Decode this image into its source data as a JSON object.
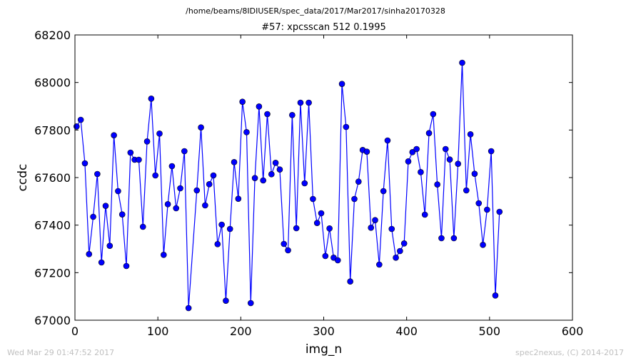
{
  "chart_data": {
    "type": "line",
    "suptitle": "/home/beams/8IDIUSER/spec_data/2017/Mar2017/sinha20170328",
    "title": "#57: xpcsscan 512 0.1995",
    "xlabel": "img_n",
    "ylabel": "ccdc",
    "xlim": [
      0,
      600
    ],
    "ylim": [
      67000,
      68200
    ],
    "xticks": [
      0,
      100,
      200,
      300,
      400,
      500,
      600
    ],
    "yticks": [
      67000,
      67200,
      67400,
      67600,
      67800,
      68000,
      68200
    ],
    "grid": false,
    "legend": "none",
    "line_color": "#0000ff",
    "marker": "circle",
    "series": [
      {
        "x": [
          2,
          7,
          12,
          17,
          22,
          27,
          32,
          37,
          42,
          47,
          52,
          57,
          62,
          67,
          72,
          77,
          82,
          87,
          92,
          97,
          102,
          107,
          112,
          117,
          122,
          127,
          132,
          137,
          147,
          152,
          157,
          162,
          167,
          172,
          177,
          182,
          187,
          192,
          197,
          202,
          207,
          212,
          217,
          222,
          227,
          232,
          237,
          242,
          247,
          252,
          257,
          262,
          267,
          272,
          277,
          282,
          287,
          292,
          297,
          302,
          307,
          312,
          317,
          322,
          327,
          332,
          337,
          342,
          347,
          352,
          357,
          362,
          367,
          372,
          377,
          382,
          387,
          392,
          397,
          402,
          407,
          412,
          417,
          422,
          427,
          432,
          437,
          442,
          447,
          452,
          457,
          462,
          467,
          472,
          477,
          482,
          487,
          492,
          497,
          502,
          507,
          512
        ],
        "values": [
          67815,
          67843,
          67660,
          67278,
          67435,
          67615,
          67243,
          67481,
          67313,
          67778,
          67543,
          67445,
          67228,
          67705,
          67675,
          67675,
          67393,
          67752,
          67932,
          67609,
          67785,
          67275,
          67488,
          67648,
          67471,
          67555,
          67711,
          67051,
          67546,
          67811,
          67483,
          67572,
          67609,
          67320,
          67402,
          67082,
          67384,
          67665,
          67511,
          67919,
          67791,
          67072,
          67598,
          67899,
          67588,
          67867,
          67614,
          67662,
          67634,
          67321,
          67294,
          67863,
          67387,
          67915,
          67576,
          67915,
          67510,
          67409,
          67450,
          67270,
          67386,
          67263,
          67252,
          67994,
          67813,
          67163,
          67510,
          67583,
          67716,
          67709,
          67389,
          67421,
          67234,
          67543,
          67756,
          67384,
          67263,
          67291,
          67323,
          67668,
          67707,
          67720,
          67623,
          67444,
          67787,
          67867,
          67571,
          67345,
          67720,
          67676,
          67345,
          67658,
          68083,
          67546,
          67782,
          67616,
          67492,
          67317,
          67465,
          67711,
          67104,
          67456
        ]
      }
    ]
  },
  "footer": {
    "timestamp": "Wed Mar 29 01:47:52 2017",
    "credit": "spec2nexus, (C) 2014-2017"
  }
}
